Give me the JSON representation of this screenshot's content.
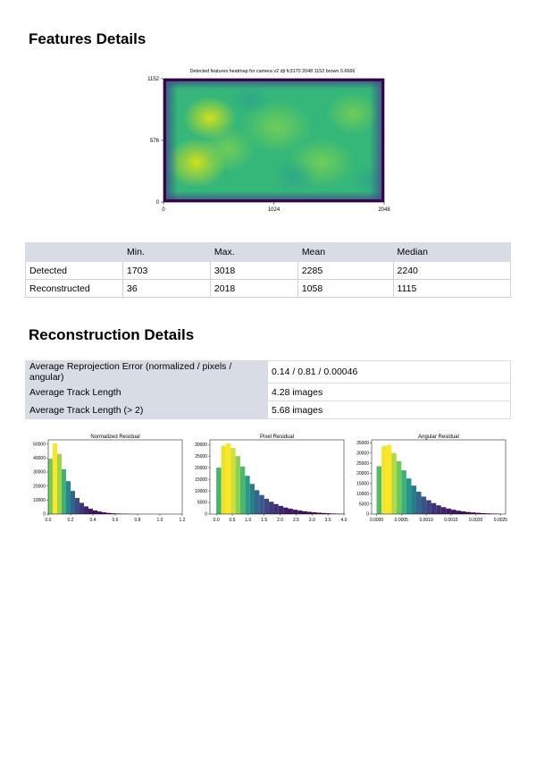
{
  "sections": {
    "features_title": "Features Details",
    "reconstruction_title": "Reconstruction Details"
  },
  "heatmap": {
    "title": "Detected features heatmap for camera v2 dji fc3170 2048 1152 brown 0.6666",
    "x_ticks": [
      "0",
      "1024",
      "2048"
    ],
    "y_ticks": [
      "1152",
      "576",
      "0"
    ],
    "colormap": [
      "#440154",
      "#3b528b",
      "#21918c",
      "#5ec962",
      "#fde725"
    ]
  },
  "features_table": {
    "headers": [
      "",
      "Min.",
      "Max.",
      "Mean",
      "Median"
    ],
    "rows": [
      {
        "label": "Detected",
        "values": [
          "1703",
          "3018",
          "2285",
          "2240"
        ]
      },
      {
        "label": "Reconstructed",
        "values": [
          "36",
          "2018",
          "1058",
          "1115"
        ]
      }
    ]
  },
  "reconstruction_table": {
    "rows": [
      {
        "label": "Average Reprojection Error (normalized / pixels / angular)",
        "value": "0.14 / 0.81 / 0.00046"
      },
      {
        "label": "Average Track Length",
        "value": "4.28 images"
      },
      {
        "label": "Average Track Length (> 2)",
        "value": "5.68 images"
      }
    ]
  },
  "chart_data": [
    {
      "type": "bar",
      "title": "Normalized Residual",
      "xlim": [
        0,
        1.2
      ],
      "ylim": [
        0,
        53000
      ],
      "bin_width": 0.04,
      "x_ticks": [
        "0.0",
        "0.2",
        "0.4",
        "0.6",
        "0.8",
        "1.0",
        "1.2"
      ],
      "x_tick_values": [
        0,
        0.2,
        0.4,
        0.6,
        0.8,
        1.0,
        1.2
      ],
      "y_ticks": [
        "0",
        "10000",
        "20000",
        "30000",
        "40000",
        "50000"
      ],
      "y_tick_values": [
        0,
        10000,
        20000,
        30000,
        40000,
        50000
      ],
      "values": [
        39500,
        50500,
        43000,
        32000,
        23500,
        16500,
        11500,
        8000,
        5500,
        3800,
        2600,
        1800,
        1200,
        800,
        550,
        380,
        260,
        180,
        120,
        80,
        50,
        30,
        20,
        12,
        8,
        5,
        3,
        2,
        1,
        1
      ]
    },
    {
      "type": "bar",
      "title": "Pixel Residual",
      "xlim": [
        -0.2,
        4.0
      ],
      "ylim": [
        0,
        32000
      ],
      "bin_width": 0.15,
      "x_ticks": [
        "0.0",
        "0.5",
        "1.0",
        "1.5",
        "2.0",
        "2.5",
        "3.0",
        "3.5",
        "4.0"
      ],
      "x_tick_values": [
        0,
        0.5,
        1.0,
        1.5,
        2.0,
        2.5,
        3.0,
        3.5,
        4.0
      ],
      "y_ticks": [
        "0",
        "5000",
        "10000",
        "15000",
        "20000",
        "25000",
        "30000"
      ],
      "y_tick_values": [
        0,
        5000,
        10000,
        15000,
        20000,
        25000,
        30000
      ],
      "values": [
        20000,
        29500,
        30500,
        28500,
        25000,
        20500,
        16500,
        13000,
        10300,
        8200,
        6600,
        5300,
        4300,
        3500,
        2800,
        2300,
        1850,
        1500,
        1200,
        950,
        750,
        580,
        450,
        330,
        230,
        150,
        90
      ]
    },
    {
      "type": "bar",
      "title": "Angular Residual",
      "xlim": [
        -0.0001,
        0.0026
      ],
      "ylim": [
        0,
        36500
      ],
      "bin_width": 0.0001,
      "x_ticks": [
        "0.0000",
        "0.0005",
        "0.0010",
        "0.0015",
        "0.0020",
        "0.0025"
      ],
      "x_tick_values": [
        0,
        0.0005,
        0.001,
        0.0015,
        0.002,
        0.0025
      ],
      "y_ticks": [
        "0",
        "5000",
        "10000",
        "15000",
        "20000",
        "25000",
        "30000",
        "35000"
      ],
      "y_tick_values": [
        0,
        5000,
        10000,
        15000,
        20000,
        25000,
        30000,
        35000
      ],
      "values": [
        23500,
        33500,
        34000,
        30000,
        26000,
        21500,
        17500,
        14000,
        11000,
        8600,
        6800,
        5400,
        4300,
        3400,
        2700,
        2100,
        1650,
        1300,
        1000,
        780,
        600,
        450,
        330,
        230,
        150
      ]
    }
  ]
}
